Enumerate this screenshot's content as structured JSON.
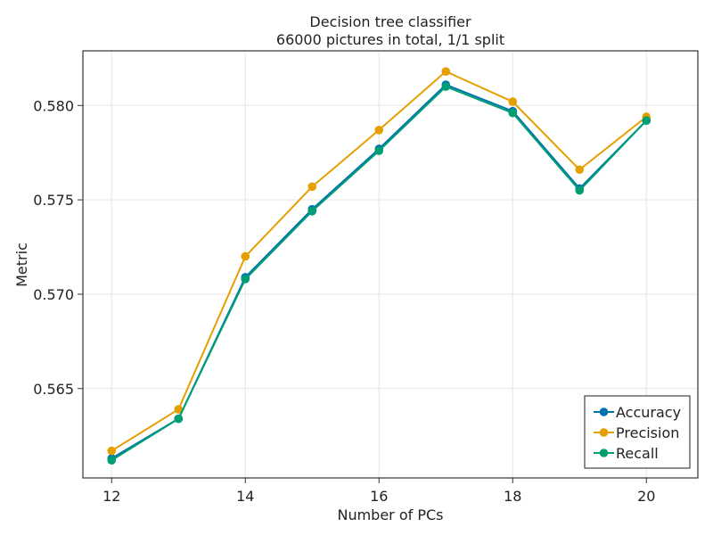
{
  "chart_data": {
    "type": "line",
    "title": "Decision tree classifier",
    "subtitle": "66000 pictures in total, 1/1 split",
    "xlabel": "Number of PCs",
    "ylabel": "Metric",
    "x": [
      12,
      13,
      14,
      15,
      16,
      17,
      18,
      19,
      20
    ],
    "xlim": [
      11.57,
      20.77
    ],
    "ylim": [
      0.560265,
      0.582895
    ],
    "xticks": [
      12,
      14,
      16,
      18,
      20
    ],
    "xtick_labels": [
      "12",
      "14",
      "16",
      "18",
      "20"
    ],
    "yticks": [
      0.565,
      0.57,
      0.575,
      0.58
    ],
    "ytick_labels": [
      "0.565",
      "0.570",
      "0.575",
      "0.580"
    ],
    "grid": true,
    "legend_position": "bottom-right",
    "series": [
      {
        "name": "Accuracy",
        "color": "#0072b2",
        "values": [
          0.5613,
          0.5634,
          0.5709,
          0.5745,
          0.5777,
          0.5811,
          0.5797,
          0.5756,
          0.5792
        ]
      },
      {
        "name": "Precision",
        "color": "#e69f00",
        "values": [
          0.5617,
          0.5639,
          0.572,
          0.5757,
          0.5787,
          0.5818,
          0.5802,
          0.5766,
          0.5794
        ]
      },
      {
        "name": "Recall",
        "color": "#009e73",
        "values": [
          0.5612,
          0.5634,
          0.5708,
          0.5744,
          0.5776,
          0.581,
          0.5796,
          0.5755,
          0.5792
        ]
      }
    ]
  }
}
